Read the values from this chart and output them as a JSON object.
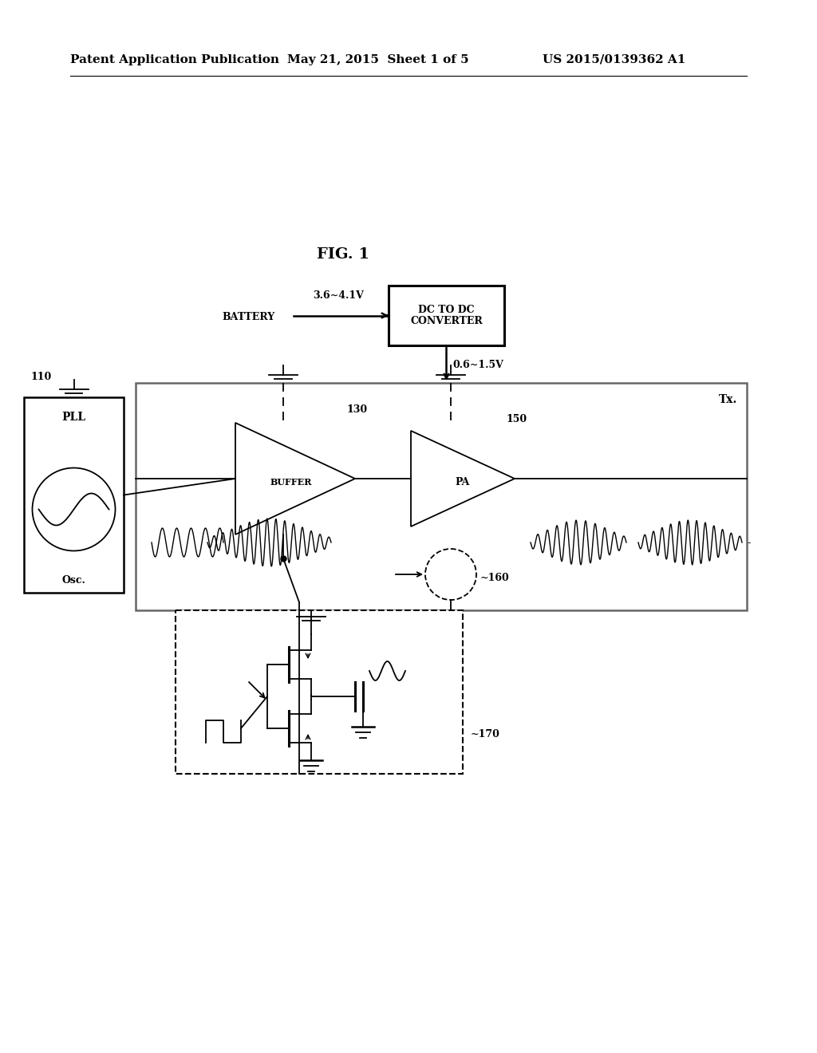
{
  "bg_color": "#ffffff",
  "title_header_left": "Patent Application Publication",
  "title_header_mid": "May 21, 2015  Sheet 1 of 5",
  "title_header_right": "US 2015/0139362 A1",
  "fig_label": "FIG. 1",
  "battery_label": "BATTERY",
  "voltage_in": "3.6~4.1V",
  "dc_converter_label": "DC TO DC\nCONVERTER",
  "voltage_out": "0.6~1.5V",
  "tx_label": "Tx.",
  "pll_label": "PLL",
  "osc_label": "Osc.",
  "buffer_label": "BUFFER",
  "pa_label": "PA",
  "label_110": "110",
  "label_130": "130",
  "label_150": "150",
  "label_160": "~160",
  "label_170": "~170"
}
